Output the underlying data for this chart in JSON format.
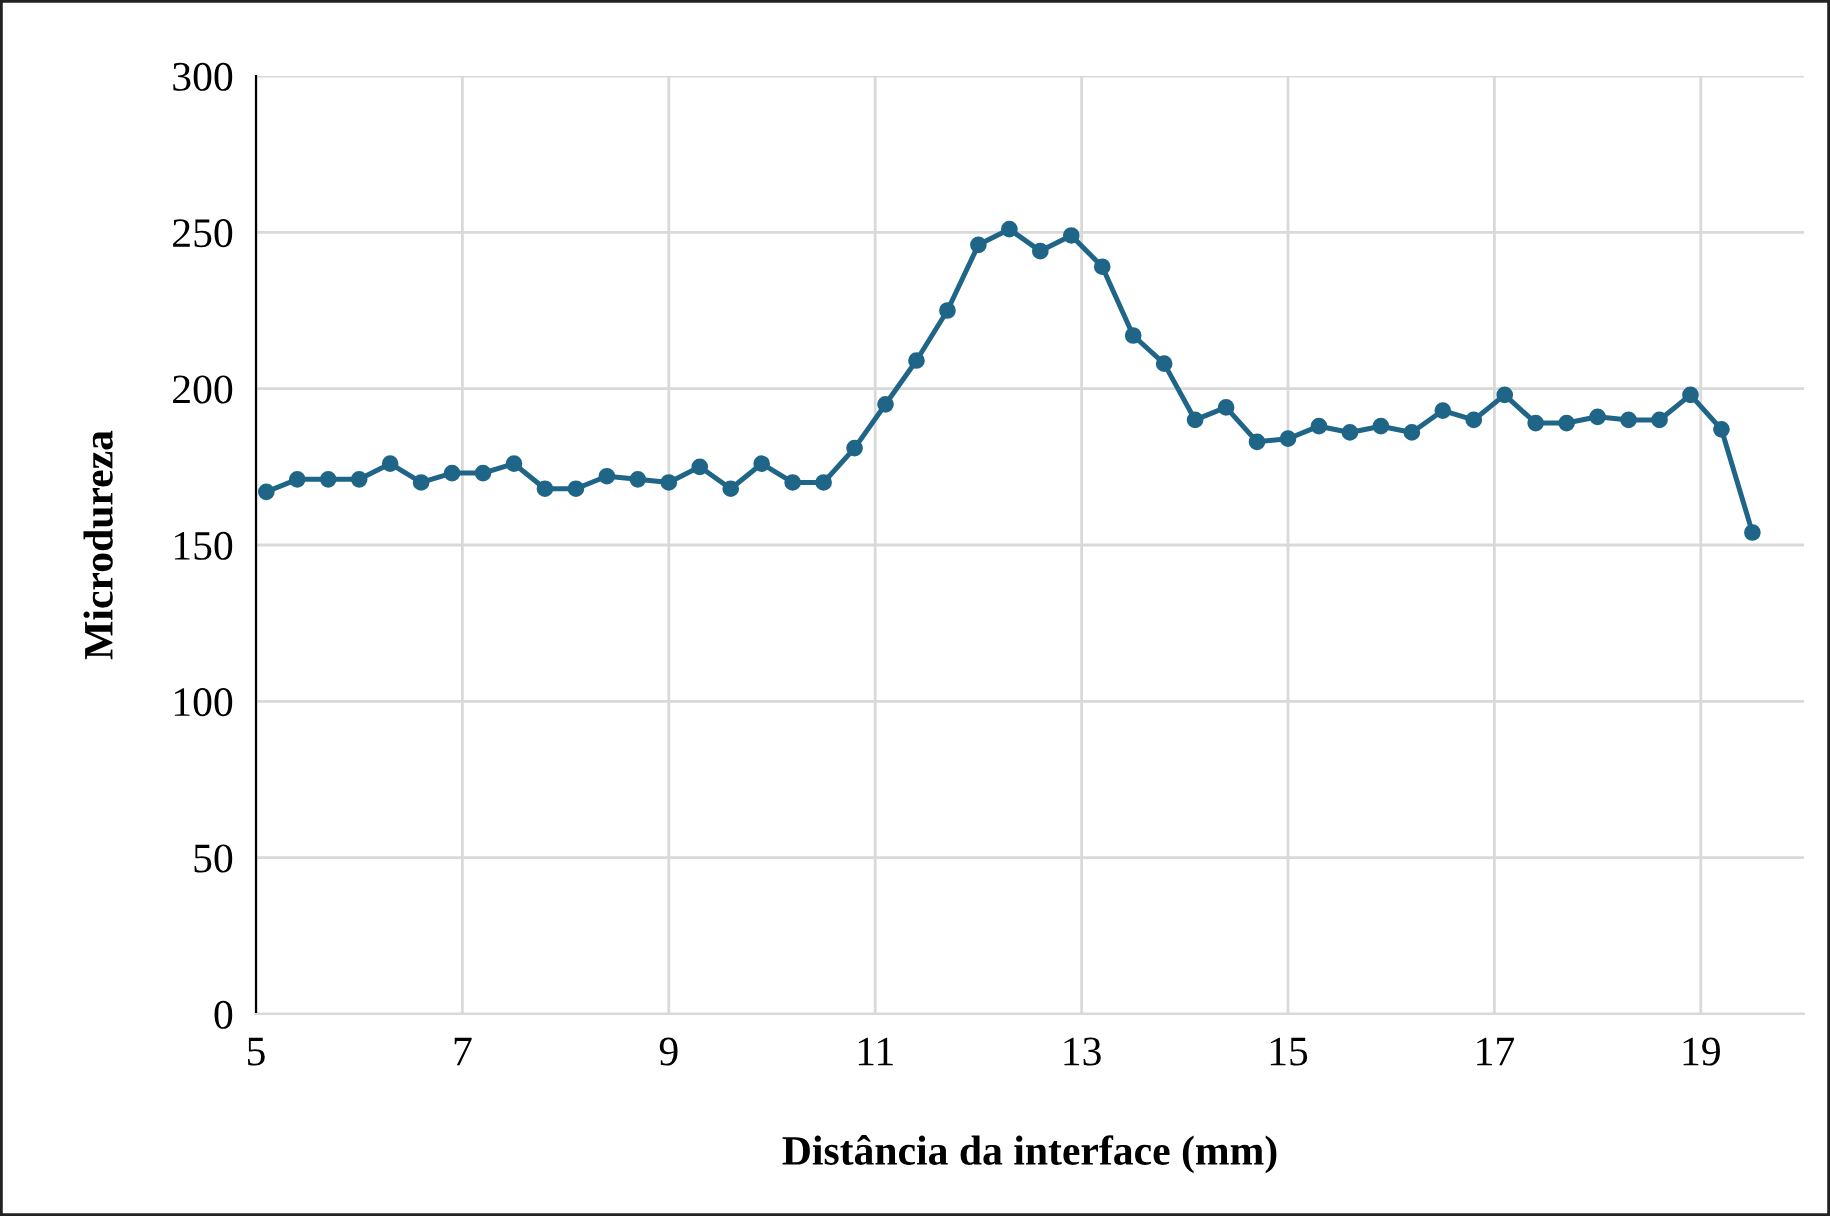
{
  "chart_data": {
    "type": "line",
    "xlabel": "Distância da interface (mm)",
    "ylabel": "Microdureza",
    "x": [
      5.1,
      5.4,
      5.7,
      6.0,
      6.3,
      6.6,
      6.9,
      7.2,
      7.5,
      7.8,
      8.1,
      8.4,
      8.7,
      9.0,
      9.3,
      9.6,
      9.9,
      10.2,
      10.5,
      10.8,
      11.1,
      11.4,
      11.7,
      12.0,
      12.3,
      12.6,
      12.9,
      13.2,
      13.5,
      13.8,
      14.1,
      14.4,
      14.7,
      15.0,
      15.3,
      15.6,
      15.9,
      16.2,
      16.5,
      16.8,
      17.1,
      17.4,
      17.7,
      18.0,
      18.3,
      18.6,
      18.9,
      19.2,
      19.5
    ],
    "series": [
      {
        "color": "#1f6587",
        "values": [
          167,
          171,
          171,
          171,
          176,
          170,
          173,
          173,
          176,
          168,
          168,
          172,
          171,
          170,
          175,
          168,
          176,
          170,
          170,
          181,
          195,
          209,
          225,
          246,
          251,
          244,
          249,
          239,
          217,
          208,
          190,
          194,
          183,
          184,
          188,
          186,
          188,
          186,
          193,
          190,
          198,
          189,
          189,
          191,
          190,
          190,
          198,
          187,
          154
        ]
      }
    ],
    "xlim": [
      5,
      20
    ],
    "xticks": [
      5,
      7,
      9,
      11,
      13,
      15,
      17,
      19
    ],
    "ylim": [
      0,
      300
    ],
    "yticks": [
      0,
      50,
      100,
      150,
      200,
      250,
      300
    ],
    "grid": true,
    "marker": "circle",
    "line_style": "solid",
    "legend": false
  }
}
